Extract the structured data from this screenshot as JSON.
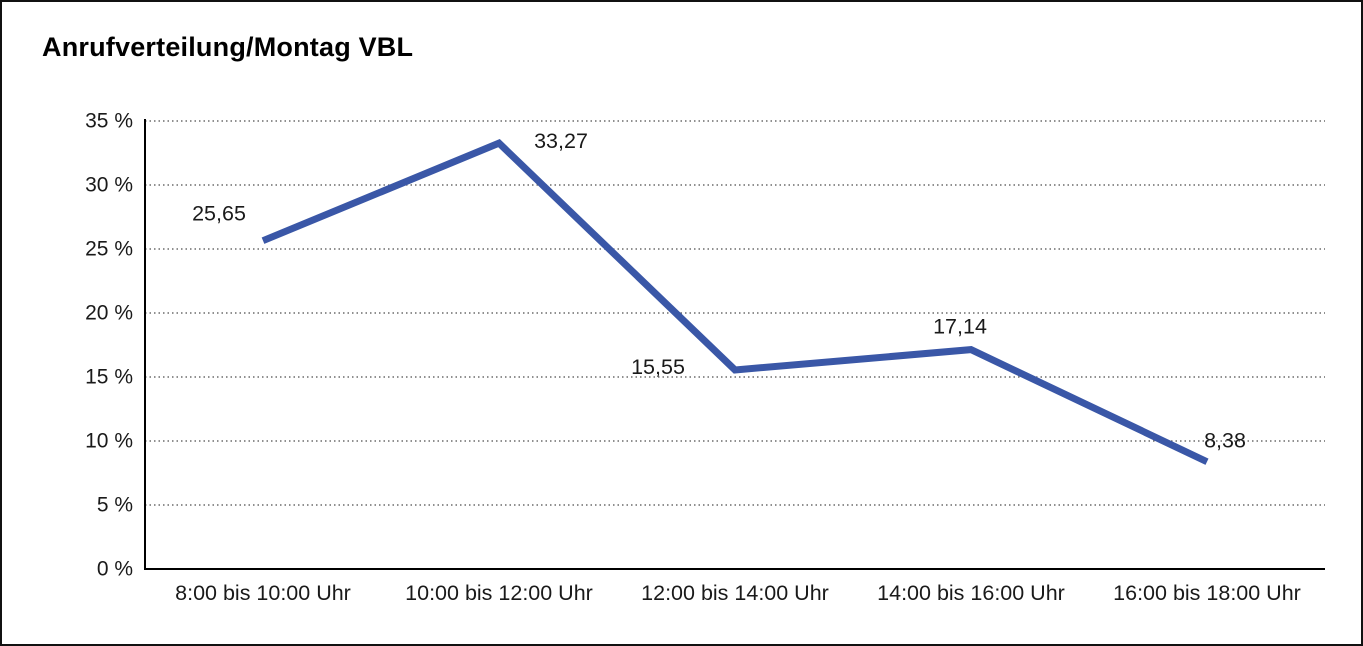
{
  "window": {
    "background": "#ffffff",
    "border_color": "#111111"
  },
  "chart_data": {
    "type": "line",
    "title": "Anrufverteilung/Montag VBL",
    "categories": [
      "8:00 bis 10:00 Uhr",
      "10:00 bis 12:00 Uhr",
      "12:00 bis 14:00 Uhr",
      "14:00 bis 16:00 Uhr",
      "16:00 bis 18:00 Uhr"
    ],
    "values": [
      25.65,
      33.27,
      15.55,
      17.14,
      8.38
    ],
    "value_labels": [
      "25,65",
      "33,27",
      "15,55",
      "17,14",
      "8,38"
    ],
    "value_label_positions": [
      "above-left",
      "right",
      "left",
      "above",
      "above-right"
    ],
    "xlabel": "",
    "ylabel": "",
    "ylim": [
      0,
      35
    ],
    "yticks": [
      {
        "value": 35,
        "label": "35 %"
      },
      {
        "value": 30,
        "label": "30 %"
      },
      {
        "value": 25,
        "label": "25 %"
      },
      {
        "value": 20,
        "label": "20 %"
      },
      {
        "value": 15,
        "label": "15 %"
      },
      {
        "value": 10,
        "label": "10 %"
      },
      {
        "value": 5,
        "label": "5 %"
      },
      {
        "value": 0,
        "label": "0 %"
      }
    ],
    "grid": "horizontal-dotted",
    "legend": "none",
    "line_color": "#3A57A7",
    "axis_color": "#000000",
    "grid_color": "#4d4d4d",
    "text_color": "#1a1a1a"
  }
}
